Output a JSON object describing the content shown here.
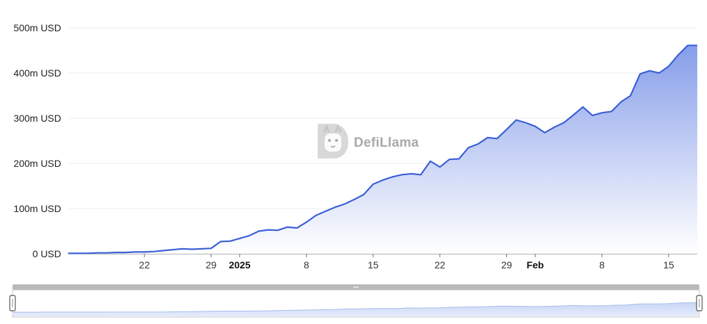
{
  "watermark": {
    "text": "DefiLlama",
    "icon": "llama-logo-icon"
  },
  "colors": {
    "line": "#3b5fd6",
    "area_top": "#7f98e8",
    "area_bottom": "#ffffff",
    "slider": "#b9b9b9"
  },
  "chart_data": {
    "type": "area",
    "title": "",
    "xlabel": "",
    "ylabel": "",
    "y_unit": "USD",
    "ylim": [
      0,
      500
    ],
    "yticks": [
      0,
      100,
      200,
      300,
      400,
      500
    ],
    "ytick_labels": [
      "0 USD",
      "100m USD",
      "200m USD",
      "300m USD",
      "400m USD",
      "500m USD"
    ],
    "x_range": [
      "2024-12-14",
      "2025-02-18"
    ],
    "xticks": [
      {
        "date": "2024-12-22",
        "label": "22",
        "bold": false
      },
      {
        "date": "2024-12-29",
        "label": "29",
        "bold": false
      },
      {
        "date": "2025-01-01",
        "label": "2025",
        "bold": true
      },
      {
        "date": "2025-01-08",
        "label": "8",
        "bold": false
      },
      {
        "date": "2025-01-15",
        "label": "15",
        "bold": false
      },
      {
        "date": "2025-01-22",
        "label": "22",
        "bold": false
      },
      {
        "date": "2025-01-29",
        "label": "29",
        "bold": false
      },
      {
        "date": "2025-02-01",
        "label": "Feb",
        "bold": true
      },
      {
        "date": "2025-02-08",
        "label": "8",
        "bold": false
      },
      {
        "date": "2025-02-15",
        "label": "15",
        "bold": false
      }
    ],
    "grid": true,
    "legend": "none",
    "series": [
      {
        "x": [
          "2024-12-14",
          "2024-12-15",
          "2024-12-16",
          "2024-12-17",
          "2024-12-18",
          "2024-12-19",
          "2024-12-20",
          "2024-12-21",
          "2024-12-22",
          "2024-12-23",
          "2024-12-24",
          "2024-12-25",
          "2024-12-26",
          "2024-12-27",
          "2024-12-28",
          "2024-12-29",
          "2024-12-30",
          "2024-12-31",
          "2025-01-01",
          "2025-01-02",
          "2025-01-03",
          "2025-01-04",
          "2025-01-05",
          "2025-01-06",
          "2025-01-07",
          "2025-01-08",
          "2025-01-09",
          "2025-01-10",
          "2025-01-11",
          "2025-01-12",
          "2025-01-13",
          "2025-01-14",
          "2025-01-15",
          "2025-01-16",
          "2025-01-17",
          "2025-01-18",
          "2025-01-19",
          "2025-01-20",
          "2025-01-21",
          "2025-01-22",
          "2025-01-23",
          "2025-01-24",
          "2025-01-25",
          "2025-01-26",
          "2025-01-27",
          "2025-01-28",
          "2025-01-29",
          "2025-01-30",
          "2025-01-31",
          "2025-02-01",
          "2025-02-02",
          "2025-02-03",
          "2025-02-04",
          "2025-02-05",
          "2025-02-06",
          "2025-02-07",
          "2025-02-08",
          "2025-02-09",
          "2025-02-10",
          "2025-02-11",
          "2025-02-12",
          "2025-02-13",
          "2025-02-14",
          "2025-02-15",
          "2025-02-16",
          "2025-02-17",
          "2025-02-18"
        ],
        "values": [
          1,
          1,
          1,
          2,
          2,
          3,
          3,
          4,
          4,
          5,
          7,
          9,
          11,
          10,
          11,
          12,
          27,
          28,
          34,
          40,
          50,
          53,
          52,
          59,
          57,
          70,
          85,
          94,
          103,
          110,
          120,
          131,
          154,
          163,
          170,
          175,
          177,
          175,
          205,
          192,
          209,
          210,
          235,
          243,
          257,
          255,
          275,
          296,
          290,
          282,
          268,
          280,
          290,
          307,
          325,
          306,
          312,
          315,
          336,
          350,
          398,
          405,
          400,
          415,
          440,
          461,
          461
        ]
      }
    ]
  }
}
